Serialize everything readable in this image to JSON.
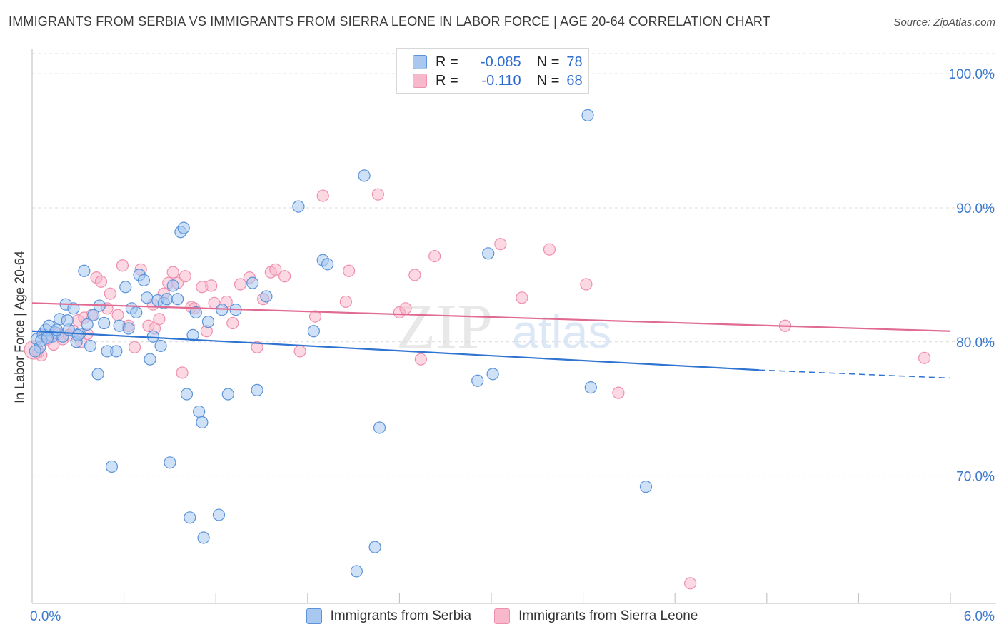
{
  "title": "IMMIGRANTS FROM SERBIA VS IMMIGRANTS FROM SIERRA LEONE IN LABOR FORCE | AGE 20-64 CORRELATION CHART",
  "source": "Source: ZipAtlas.com",
  "watermark": {
    "zip": "ZIP",
    "atlas": "atlas"
  },
  "legend_top": {
    "rows": [
      {
        "r_label": "R =",
        "r_value": "-0.085",
        "n_label": "N =",
        "n_value": "78",
        "color": "#a8c8f0"
      },
      {
        "r_label": "R =",
        "r_value": "-0.110",
        "n_label": "N =",
        "n_value": "68",
        "color": "#f7b8cb"
      }
    ]
  },
  "chart_data": {
    "type": "scatter",
    "title": "IMMIGRANTS FROM SERBIA VS IMMIGRANTS FROM SIERRA LEONE IN LABOR FORCE | AGE 20-64 CORRELATION CHART",
    "xlabel": "",
    "ylabel": "In Labor Force | Age 20-64",
    "xlim": [
      0,
      6
    ],
    "ylim": [
      60.5,
      101.5
    ],
    "x_tick_labels": [
      "0.0%",
      "6.0%"
    ],
    "y_ticks": [
      70,
      80,
      90,
      100
    ],
    "y_tick_labels": [
      "70.0%",
      "80.0%",
      "90.0%",
      "100.0%"
    ],
    "grid": true,
    "series": [
      {
        "name": "Immigrants from Serbia",
        "color": "#5b93d9",
        "fill": "#a8c8f0",
        "trend": {
          "x0": 0.0,
          "y0": 80.8,
          "x1": 4.75,
          "y1": 77.9,
          "dash_to_x": 6.0,
          "dash_to_y": 77.3,
          "color": "#2f74d0"
        },
        "points": [
          [
            0.03,
            80.2
          ],
          [
            0.05,
            79.6
          ],
          [
            0.07,
            80.6
          ],
          [
            0.09,
            80.9
          ],
          [
            0.11,
            81.2
          ],
          [
            0.13,
            80.4
          ],
          [
            0.15,
            80.7
          ],
          [
            0.18,
            81.7
          ],
          [
            0.2,
            80.4
          ],
          [
            0.22,
            82.8
          ],
          [
            0.24,
            80.9
          ],
          [
            0.27,
            82.5
          ],
          [
            0.29,
            80.0
          ],
          [
            0.31,
            80.6
          ],
          [
            0.34,
            85.3
          ],
          [
            0.38,
            79.7
          ],
          [
            0.4,
            82.0
          ],
          [
            0.43,
            77.6
          ],
          [
            0.47,
            81.4
          ],
          [
            0.49,
            79.3
          ],
          [
            0.52,
            70.7
          ],
          [
            0.55,
            79.3
          ],
          [
            0.57,
            81.2
          ],
          [
            0.61,
            84.1
          ],
          [
            0.63,
            81.0
          ],
          [
            0.65,
            82.5
          ],
          [
            0.68,
            82.2
          ],
          [
            0.7,
            85.0
          ],
          [
            0.73,
            84.6
          ],
          [
            0.75,
            83.3
          ],
          [
            0.77,
            78.7
          ],
          [
            0.79,
            80.4
          ],
          [
            0.82,
            83.1
          ],
          [
            0.84,
            79.7
          ],
          [
            0.86,
            82.9
          ],
          [
            0.88,
            83.2
          ],
          [
            0.9,
            71.0
          ],
          [
            0.92,
            84.2
          ],
          [
            0.95,
            83.2
          ],
          [
            0.97,
            88.2
          ],
          [
            0.99,
            88.5
          ],
          [
            1.01,
            76.1
          ],
          [
            1.03,
            66.9
          ],
          [
            1.05,
            80.5
          ],
          [
            1.07,
            82.2
          ],
          [
            1.09,
            74.8
          ],
          [
            1.11,
            74.0
          ],
          [
            1.12,
            65.4
          ],
          [
            1.15,
            81.5
          ],
          [
            1.22,
            67.1
          ],
          [
            1.24,
            82.4
          ],
          [
            1.28,
            76.1
          ],
          [
            1.33,
            82.4
          ],
          [
            1.44,
            84.4
          ],
          [
            1.47,
            76.4
          ],
          [
            1.53,
            83.4
          ],
          [
            1.74,
            90.1
          ],
          [
            1.84,
            80.8
          ],
          [
            1.9,
            86.1
          ],
          [
            1.93,
            85.8
          ],
          [
            2.12,
            62.9
          ],
          [
            2.17,
            92.4
          ],
          [
            2.24,
            64.7
          ],
          [
            2.27,
            73.6
          ],
          [
            2.91,
            77.1
          ],
          [
            2.98,
            86.6
          ],
          [
            3.01,
            77.6
          ],
          [
            3.63,
            96.9
          ],
          [
            3.65,
            76.6
          ],
          [
            4.01,
            69.2
          ],
          [
            0.02,
            79.3
          ],
          [
            0.06,
            80.1
          ],
          [
            0.1,
            80.3
          ],
          [
            0.16,
            80.9
          ],
          [
            0.23,
            81.6
          ],
          [
            0.3,
            80.5
          ],
          [
            0.36,
            81.3
          ],
          [
            0.44,
            82.7
          ]
        ]
      },
      {
        "name": "Immigrants from Sierra Leone",
        "color": "#ee8fb0",
        "fill": "#f7b8cb",
        "trend": {
          "x0": 0.0,
          "y0": 82.9,
          "x1": 6.0,
          "y1": 80.8,
          "color": "#e06a92"
        },
        "points": [
          [
            0.04,
            79.2
          ],
          [
            0.06,
            79.0
          ],
          [
            0.08,
            80.5
          ],
          [
            0.1,
            80.2
          ],
          [
            0.14,
            79.8
          ],
          [
            0.17,
            80.6
          ],
          [
            0.2,
            80.2
          ],
          [
            0.24,
            80.5
          ],
          [
            0.27,
            80.8
          ],
          [
            0.3,
            81.6
          ],
          [
            0.32,
            80.0
          ],
          [
            0.34,
            81.8
          ],
          [
            0.36,
            80.6
          ],
          [
            0.39,
            82.0
          ],
          [
            0.42,
            84.8
          ],
          [
            0.45,
            84.5
          ],
          [
            0.49,
            82.5
          ],
          [
            0.51,
            83.6
          ],
          [
            0.56,
            82.0
          ],
          [
            0.59,
            85.7
          ],
          [
            0.63,
            81.2
          ],
          [
            0.67,
            79.6
          ],
          [
            0.71,
            85.4
          ],
          [
            0.76,
            81.2
          ],
          [
            0.79,
            82.8
          ],
          [
            0.8,
            81.0
          ],
          [
            0.83,
            81.7
          ],
          [
            0.86,
            83.6
          ],
          [
            0.89,
            84.4
          ],
          [
            0.92,
            85.2
          ],
          [
            0.95,
            84.4
          ],
          [
            0.98,
            77.7
          ],
          [
            1.0,
            84.9
          ],
          [
            1.04,
            82.6
          ],
          [
            1.06,
            82.5
          ],
          [
            1.11,
            84.1
          ],
          [
            1.14,
            80.8
          ],
          [
            1.17,
            84.2
          ],
          [
            1.19,
            82.9
          ],
          [
            1.27,
            83.0
          ],
          [
            1.31,
            81.4
          ],
          [
            1.36,
            84.3
          ],
          [
            1.42,
            84.8
          ],
          [
            1.47,
            79.6
          ],
          [
            1.51,
            83.2
          ],
          [
            1.56,
            85.2
          ],
          [
            1.59,
            85.4
          ],
          [
            1.65,
            84.9
          ],
          [
            1.75,
            79.3
          ],
          [
            1.85,
            81.9
          ],
          [
            1.9,
            90.9
          ],
          [
            2.05,
            83.0
          ],
          [
            2.07,
            85.3
          ],
          [
            2.26,
            91.0
          ],
          [
            2.4,
            82.2
          ],
          [
            2.44,
            82.5
          ],
          [
            2.5,
            85.0
          ],
          [
            2.54,
            78.7
          ],
          [
            2.63,
            86.4
          ],
          [
            3.06,
            87.3
          ],
          [
            3.2,
            83.3
          ],
          [
            3.38,
            86.9
          ],
          [
            3.62,
            84.3
          ],
          [
            3.83,
            76.2
          ],
          [
            4.92,
            81.2
          ],
          [
            5.83,
            78.8
          ],
          [
            4.3,
            62.0
          ],
          [
            0.01,
            79.4
          ]
        ]
      }
    ]
  },
  "bottom_legend": [
    {
      "label": "Immigrants from Serbia",
      "color": "#a8c8f0"
    },
    {
      "label": "Immigrants from Sierra Leone",
      "color": "#f7b8cb"
    }
  ]
}
